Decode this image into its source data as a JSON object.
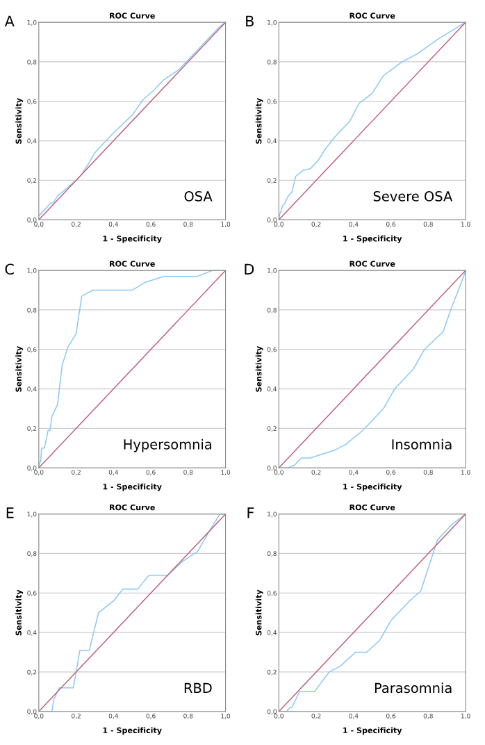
{
  "chart_data": [
    {
      "type": "line",
      "title": "ROC Curve",
      "xlabel": "1 - Specificity",
      "ylabel": "Sensitivity",
      "annotations": [
        "A",
        "OSA"
      ],
      "xlim": [
        0,
        1
      ],
      "ylim": [
        0,
        1
      ],
      "xticks": [
        {
          "value": 0,
          "label": "0,0"
        },
        {
          "value": 0.2,
          "label": "0,2"
        },
        {
          "value": 0.4,
          "label": "0,4"
        },
        {
          "value": 0.6,
          "label": "0,6"
        },
        {
          "value": 0.8,
          "label": "0,8"
        },
        {
          "value": 1,
          "label": "1,0"
        }
      ],
      "yticks": [
        {
          "value": 0,
          "label": "0,0"
        },
        {
          "value": 0.2,
          "label": "0,2"
        },
        {
          "value": 0.4,
          "label": "0,4"
        },
        {
          "value": 0.6,
          "label": "0,6"
        },
        {
          "value": 0.8,
          "label": "0,8"
        },
        {
          "value": 1,
          "label": "1,0"
        }
      ],
      "grid": "y",
      "marker": "none",
      "line_style": "solid",
      "series": [
        {
          "color": "#8cc8f8",
          "x": [
            0,
            0.02,
            0.05,
            0.06,
            0.08,
            0.1,
            0.15,
            0.2,
            0.23,
            0.27,
            0.3,
            0.35,
            0.4,
            0.5,
            0.56,
            0.62,
            0.67,
            0.75,
            0.8,
            0.85,
            0.9,
            0.97,
            1
          ],
          "values": [
            0.02,
            0.04,
            0.07,
            0.08,
            0.09,
            0.12,
            0.16,
            0.2,
            0.23,
            0.29,
            0.34,
            0.39,
            0.44,
            0.53,
            0.61,
            0.66,
            0.71,
            0.76,
            0.81,
            0.86,
            0.91,
            0.98,
            1
          ]
        },
        {
          "color": "#c0637a",
          "x": [
            0,
            1
          ],
          "values": [
            0,
            1
          ]
        }
      ]
    },
    {
      "type": "line",
      "title": "ROC Curve",
      "xlabel": "1 - Specificity",
      "ylabel": "Sensitivity",
      "annotations": [
        "B",
        "Severe OSA"
      ],
      "xlim": [
        0,
        1
      ],
      "ylim": [
        0,
        1
      ],
      "xticks": [
        {
          "value": 0,
          "label": "0,0"
        },
        {
          "value": 0.2,
          "label": "0,2"
        },
        {
          "value": 0.4,
          "label": "0,4"
        },
        {
          "value": 0.6,
          "label": "0,6"
        },
        {
          "value": 0.8,
          "label": "0,8"
        },
        {
          "value": 1,
          "label": "1,0"
        }
      ],
      "yticks": [
        {
          "value": 0,
          "label": "0,0"
        },
        {
          "value": 0.2,
          "label": "0,2"
        },
        {
          "value": 0.4,
          "label": "0,4"
        },
        {
          "value": 0.6,
          "label": "0,6"
        },
        {
          "value": 0.8,
          "label": "0,8"
        },
        {
          "value": 1,
          "label": "1,0"
        }
      ],
      "grid": "y",
      "marker": "none",
      "line_style": "solid",
      "series": [
        {
          "color": "#8cc8f8",
          "x": [
            0,
            0.005,
            0.01,
            0.02,
            0.03,
            0.05,
            0.07,
            0.09,
            0.13,
            0.17,
            0.21,
            0.25,
            0.3,
            0.38,
            0.43,
            0.5,
            0.56,
            0.66,
            0.74,
            0.86,
            1
          ],
          "values": [
            0,
            0.03,
            0.04,
            0.07,
            0.08,
            0.12,
            0.14,
            0.22,
            0.25,
            0.26,
            0.3,
            0.36,
            0.42,
            0.5,
            0.59,
            0.64,
            0.73,
            0.8,
            0.84,
            0.92,
            1
          ]
        },
        {
          "color": "#c0637a",
          "x": [
            0,
            1
          ],
          "values": [
            0,
            1
          ]
        }
      ]
    },
    {
      "type": "line",
      "title": "ROC Curve",
      "xlabel": "1 - Specificity",
      "ylabel": "Sensitivity",
      "annotations": [
        "C",
        "Hypersomnia"
      ],
      "xlim": [
        0,
        1
      ],
      "ylim": [
        0,
        1
      ],
      "xticks": [
        {
          "value": 0,
          "label": "0,0"
        },
        {
          "value": 0.2,
          "label": "0,2"
        },
        {
          "value": 0.4,
          "label": "0,4"
        },
        {
          "value": 0.6,
          "label": "0,6"
        },
        {
          "value": 0.8,
          "label": "0,8"
        },
        {
          "value": 1,
          "label": "1,0"
        }
      ],
      "yticks": [
        {
          "value": 0,
          "label": "0,0"
        },
        {
          "value": 0.2,
          "label": "0,2"
        },
        {
          "value": 0.4,
          "label": "0,4"
        },
        {
          "value": 0.6,
          "label": "0,6"
        },
        {
          "value": 0.8,
          "label": "0,8"
        },
        {
          "value": 1,
          "label": "1,0"
        }
      ],
      "grid": "y",
      "marker": "none",
      "line_style": "solid",
      "series": [
        {
          "color": "#8cc8f8",
          "x": [
            0,
            0.005,
            0.01,
            0.015,
            0.03,
            0.05,
            0.06,
            0.07,
            0.1,
            0.125,
            0.155,
            0.2,
            0.23,
            0.29,
            0.5,
            0.57,
            0.67,
            0.85,
            0.93,
            1
          ],
          "values": [
            0,
            0.03,
            0.03,
            0.1,
            0.1,
            0.19,
            0.19,
            0.26,
            0.32,
            0.52,
            0.61,
            0.68,
            0.87,
            0.9,
            0.9,
            0.94,
            0.97,
            0.97,
            1,
            1
          ]
        },
        {
          "color": "#c0637a",
          "x": [
            0,
            1
          ],
          "values": [
            0,
            1
          ]
        }
      ]
    },
    {
      "type": "line",
      "title": "ROC Curve",
      "xlabel": "1 - Specificity",
      "ylabel": "Sensitivity",
      "annotations": [
        "D",
        "Insomnia"
      ],
      "xlim": [
        0,
        1
      ],
      "ylim": [
        0,
        1
      ],
      "xticks": [
        {
          "value": 0,
          "label": "0,0"
        },
        {
          "value": 0.2,
          "label": "0,2"
        },
        {
          "value": 0.4,
          "label": "0,4"
        },
        {
          "value": 0.6,
          "label": "0,6"
        },
        {
          "value": 0.8,
          "label": "0,8"
        },
        {
          "value": 1,
          "label": "1,0"
        }
      ],
      "yticks": [
        {
          "value": 0,
          "label": "0,0"
        },
        {
          "value": 0.2,
          "label": "0,2"
        },
        {
          "value": 0.4,
          "label": "0,4"
        },
        {
          "value": 0.6,
          "label": "0,6"
        },
        {
          "value": 0.8,
          "label": "0,8"
        },
        {
          "value": 1,
          "label": "1,0"
        }
      ],
      "grid": "y",
      "marker": "none",
      "line_style": "solid",
      "series": [
        {
          "color": "#8cc8f8",
          "x": [
            0,
            0.05,
            0.07,
            0.08,
            0.12,
            0.17,
            0.2,
            0.3,
            0.36,
            0.45,
            0.56,
            0.62,
            0.72,
            0.78,
            0.88,
            0.92,
            0.99,
            1
          ],
          "values": [
            0,
            0,
            0.01,
            0.01,
            0.05,
            0.05,
            0.06,
            0.09,
            0.12,
            0.19,
            0.3,
            0.4,
            0.5,
            0.6,
            0.69,
            0.8,
            0.97,
            1
          ]
        },
        {
          "color": "#c0637a",
          "x": [
            0,
            1
          ],
          "values": [
            0,
            1
          ]
        }
      ]
    },
    {
      "type": "line",
      "title": "ROC Curve",
      "xlabel": "1 - Specificity",
      "ylabel": "Sensitivity",
      "annotations": [
        "E",
        "RBD"
      ],
      "xlim": [
        0,
        1
      ],
      "ylim": [
        0,
        1
      ],
      "xticks": [
        {
          "value": 0,
          "label": "0,0"
        },
        {
          "value": 0.2,
          "label": "0,2"
        },
        {
          "value": 0.4,
          "label": "0,4"
        },
        {
          "value": 0.6,
          "label": "0,6"
        },
        {
          "value": 0.8,
          "label": "0,8"
        },
        {
          "value": 1,
          "label": "1,0"
        }
      ],
      "yticks": [
        {
          "value": 0,
          "label": "0,0"
        },
        {
          "value": 0.2,
          "label": "0,2"
        },
        {
          "value": 0.4,
          "label": "0,4"
        },
        {
          "value": 0.6,
          "label": "0,6"
        },
        {
          "value": 0.8,
          "label": "0,8"
        },
        {
          "value": 1,
          "label": "1,0"
        }
      ],
      "grid": "y",
      "marker": "none",
      "line_style": "solid",
      "series": [
        {
          "color": "#8cc8f8",
          "x": [
            0,
            0.07,
            0.08,
            0.1,
            0.11,
            0.185,
            0.2,
            0.22,
            0.27,
            0.32,
            0.4,
            0.45,
            0.53,
            0.59,
            0.69,
            0.77,
            0.85,
            0.93,
            0.97,
            1
          ],
          "values": [
            0,
            0,
            0.06,
            0.1,
            0.12,
            0.12,
            0.2,
            0.31,
            0.31,
            0.5,
            0.56,
            0.62,
            0.62,
            0.69,
            0.69,
            0.76,
            0.81,
            0.94,
            1,
            1
          ]
        },
        {
          "color": "#c0637a",
          "x": [
            0,
            1
          ],
          "values": [
            0,
            1
          ]
        }
      ]
    },
    {
      "type": "line",
      "title": "ROC Curve",
      "xlabel": "1 - Specificity",
      "ylabel": "Sensitivity",
      "annotations": [
        "F",
        "Parasomnia"
      ],
      "xlim": [
        0,
        1
      ],
      "ylim": [
        0,
        1
      ],
      "xticks": [
        {
          "value": 0,
          "label": "0,0"
        },
        {
          "value": 0.2,
          "label": "0,2"
        },
        {
          "value": 0.4,
          "label": "0,4"
        },
        {
          "value": 0.6,
          "label": "0,6"
        },
        {
          "value": 0.8,
          "label": "0,8"
        },
        {
          "value": 1,
          "label": "1,0"
        }
      ],
      "yticks": [
        {
          "value": 0,
          "label": "0,0"
        },
        {
          "value": 0.2,
          "label": "0,2"
        },
        {
          "value": 0.4,
          "label": "0,4"
        },
        {
          "value": 0.6,
          "label": "0,6"
        },
        {
          "value": 0.8,
          "label": "0,8"
        },
        {
          "value": 1,
          "label": "1,0"
        }
      ],
      "grid": "y",
      "marker": "none",
      "line_style": "solid",
      "series": [
        {
          "color": "#8cc8f8",
          "x": [
            0,
            0.04,
            0.06,
            0.07,
            0.11,
            0.19,
            0.27,
            0.33,
            0.41,
            0.47,
            0.54,
            0.6,
            0.7,
            0.76,
            0.85,
            0.93,
            1
          ],
          "values": [
            0,
            0,
            0.02,
            0.02,
            0.1,
            0.1,
            0.2,
            0.23,
            0.3,
            0.3,
            0.36,
            0.46,
            0.56,
            0.61,
            0.87,
            0.95,
            1
          ]
        },
        {
          "color": "#c0637a",
          "x": [
            0,
            1
          ],
          "values": [
            0,
            1
          ]
        }
      ]
    }
  ]
}
